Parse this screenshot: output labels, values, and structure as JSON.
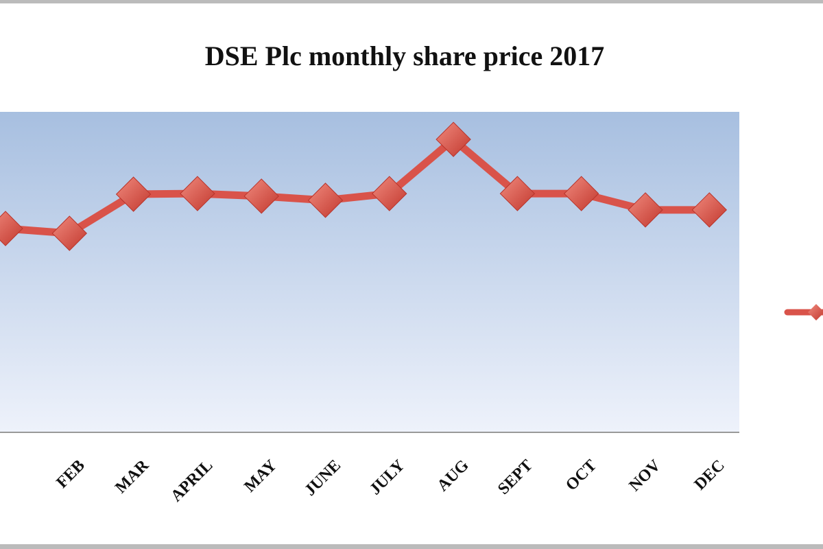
{
  "chart_data": {
    "type": "line",
    "title": "DSE Plc monthly share price 2017",
    "categories": [
      null,
      "FEB",
      "MAR",
      "APRIL",
      "MAY",
      "JUNE",
      "JULY",
      "AUG",
      "SEPT",
      "OCT",
      "NOV",
      "DEC"
    ],
    "series": [
      {
        "color": "#d9534a",
        "values": [
          63.6,
          62.1,
          74.3,
          74.5,
          73.7,
          72.4,
          74.5,
          91.4,
          74.5,
          74.5,
          69.4,
          69.4
        ]
      }
    ],
    "ylim": [
      0,
      100
    ]
  }
}
